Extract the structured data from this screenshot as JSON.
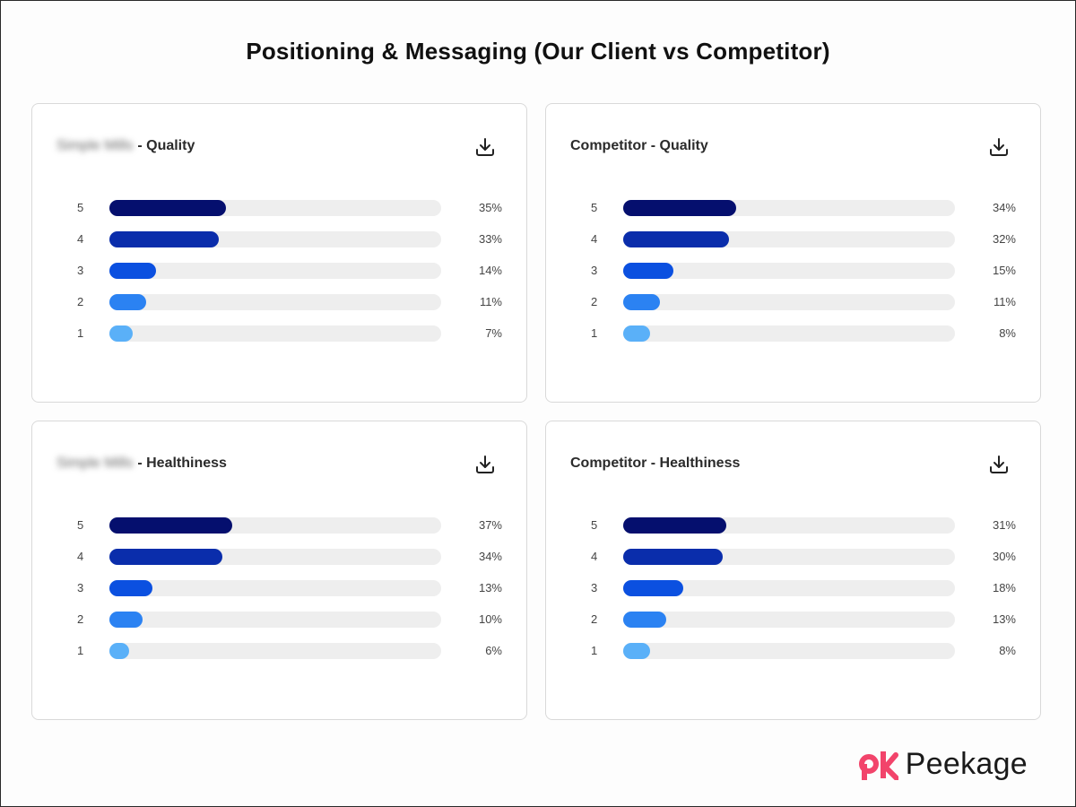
{
  "page": {
    "title": "Positioning & Messaging (Our Client vs Competitor)"
  },
  "brand": {
    "name": "Peekage",
    "logo_color": "#f2446b"
  },
  "colors": {
    "rating_5": "#050f6e",
    "rating_4": "#0a2dab",
    "rating_3": "#0b50e0",
    "rating_2": "#2b82f2",
    "rating_1": "#5ab0f8",
    "track": "#eeeeee"
  },
  "chart_data": [
    {
      "type": "bar",
      "orientation": "horizontal",
      "title_prefix": "Simple Mills",
      "title": "- Quality",
      "categories": [
        "5",
        "4",
        "3",
        "2",
        "1"
      ],
      "values": [
        35,
        33,
        14,
        11,
        7
      ],
      "labels": [
        "35%",
        "33%",
        "14%",
        "11%",
        "7%"
      ],
      "xlim": [
        0,
        100
      ]
    },
    {
      "type": "bar",
      "orientation": "horizontal",
      "title_prefix": "",
      "title": "Competitor - Quality",
      "categories": [
        "5",
        "4",
        "3",
        "2",
        "1"
      ],
      "values": [
        34,
        32,
        15,
        11,
        8
      ],
      "labels": [
        "34%",
        "32%",
        "15%",
        "11%",
        "8%"
      ],
      "xlim": [
        0,
        100
      ]
    },
    {
      "type": "bar",
      "orientation": "horizontal",
      "title_prefix": "Simple Mills",
      "title": "- Healthiness",
      "categories": [
        "5",
        "4",
        "3",
        "2",
        "1"
      ],
      "values": [
        37,
        34,
        13,
        10,
        6
      ],
      "labels": [
        "37%",
        "34%",
        "13%",
        "10%",
        "6%"
      ],
      "xlim": [
        0,
        100
      ]
    },
    {
      "type": "bar",
      "orientation": "horizontal",
      "title_prefix": "",
      "title": "Competitor - Healthiness",
      "categories": [
        "5",
        "4",
        "3",
        "2",
        "1"
      ],
      "values": [
        31,
        30,
        18,
        13,
        8
      ],
      "labels": [
        "31%",
        "30%",
        "18%",
        "13%",
        "8%"
      ],
      "xlim": [
        0,
        100
      ]
    }
  ]
}
